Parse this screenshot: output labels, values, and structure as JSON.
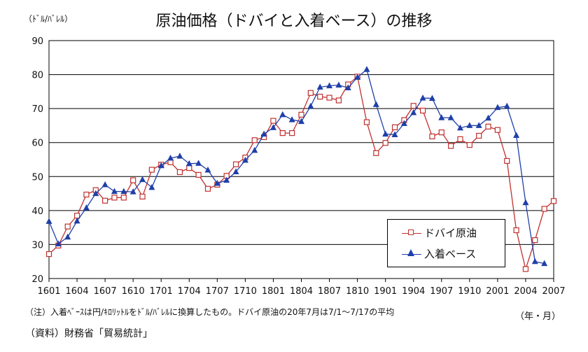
{
  "title": "原油価格（ドバイと入着ベース）の推移",
  "y_unit": "（ﾄﾞﾙ/ﾊﾞﾚﾙ）",
  "x_unit": "（年・月）",
  "note": "（注）入着ﾍﾞｰｽは円/ｷﾛﾘｯﾄﾙをﾄﾞﾙ/ﾊﾞﾚﾙに換算したもの。ドバイ原油の20年7月は7/1～7/17の平均",
  "source": "（資料）財務省「貿易統計」",
  "chart_data": {
    "type": "line",
    "ylim": [
      20,
      90
    ],
    "y_ticks": [
      20,
      30,
      40,
      50,
      60,
      70,
      80,
      90
    ],
    "x_tick_labels": [
      "1601",
      "1604",
      "1607",
      "1610",
      "1701",
      "1704",
      "1707",
      "1710",
      "1801",
      "1804",
      "1807",
      "1810",
      "1901",
      "1904",
      "1907",
      "1910",
      "2001",
      "2004",
      "2007"
    ],
    "grid": true,
    "legend_position": "bottom-right",
    "series": [
      {
        "name": "ドバイ原油",
        "color": "#c0312f",
        "marker": "square",
        "values": [
          27.2,
          29.7,
          35.3,
          38.5,
          44.7,
          46.0,
          42.9,
          43.8,
          43.8,
          48.9,
          44.1,
          52.0,
          53.5,
          54.2,
          51.3,
          52.5,
          50.5,
          46.4,
          47.6,
          50.2,
          53.6,
          55.6,
          60.7,
          61.6,
          66.4,
          62.8,
          62.8,
          68.2,
          74.6,
          73.5,
          73.2,
          72.4,
          77.1,
          79.4,
          66.0,
          56.9,
          59.9,
          64.5,
          66.6,
          70.8,
          69.4,
          61.8,
          63.0,
          59.0,
          61.0,
          59.3,
          62.0,
          64.7,
          63.7,
          54.6,
          34.2,
          22.8,
          31.3,
          40.5,
          42.8
        ]
      },
      {
        "name": "入着ベース",
        "color": "#1f3fa8",
        "marker": "triangle",
        "values": [
          36.8,
          30.2,
          32.2,
          36.9,
          40.8,
          45.0,
          47.6,
          45.6,
          45.6,
          45.5,
          49.1,
          46.8,
          53.2,
          55.4,
          56.0,
          53.8,
          53.9,
          51.9,
          48.0,
          48.9,
          51.4,
          54.8,
          57.7,
          62.5,
          64.4,
          68.2,
          66.7,
          66.2,
          70.7,
          76.3,
          76.7,
          76.9,
          76.1,
          79.2,
          81.5,
          71.2,
          62.5,
          62.3,
          65.6,
          68.8,
          73.1,
          73.0,
          67.3,
          67.3,
          64.3,
          65.0,
          65.0,
          67.2,
          70.3,
          70.7,
          62.1,
          42.3,
          25.0,
          24.4,
          null
        ]
      }
    ]
  }
}
